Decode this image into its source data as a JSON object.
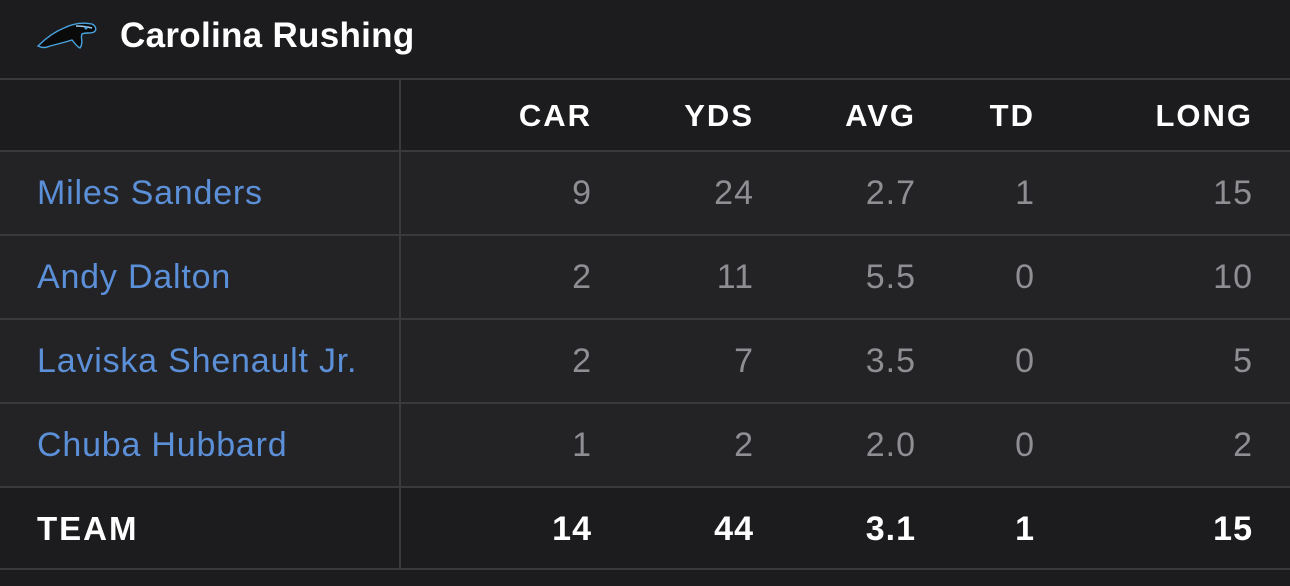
{
  "header": {
    "title": "Carolina Rushing",
    "logo_icon": "panther-logo-icon"
  },
  "columns": [
    "CAR",
    "YDS",
    "AVG",
    "TD",
    "LONG"
  ],
  "rows": [
    {
      "name": "Miles Sanders",
      "car": "9",
      "yds": "24",
      "avg": "2.7",
      "td": "1",
      "long": "15"
    },
    {
      "name": "Andy Dalton",
      "car": "2",
      "yds": "11",
      "avg": "5.5",
      "td": "0",
      "long": "10"
    },
    {
      "name": "Laviska Shenault Jr.",
      "car": "2",
      "yds": "7",
      "avg": "3.5",
      "td": "0",
      "long": "5"
    },
    {
      "name": "Chuba Hubbard",
      "car": "1",
      "yds": "2",
      "avg": "2.0",
      "td": "0",
      "long": "2"
    }
  ],
  "team": {
    "label": "TEAM",
    "car": "14",
    "yds": "44",
    "avg": "3.1",
    "td": "1",
    "long": "15"
  },
  "colors": {
    "background": "#1c1c1e",
    "row_alt": "#232325",
    "divider": "#3a3a3c",
    "link": "#5b8fd8",
    "stat_text": "#8e8e93",
    "header_text": "#ffffff"
  }
}
